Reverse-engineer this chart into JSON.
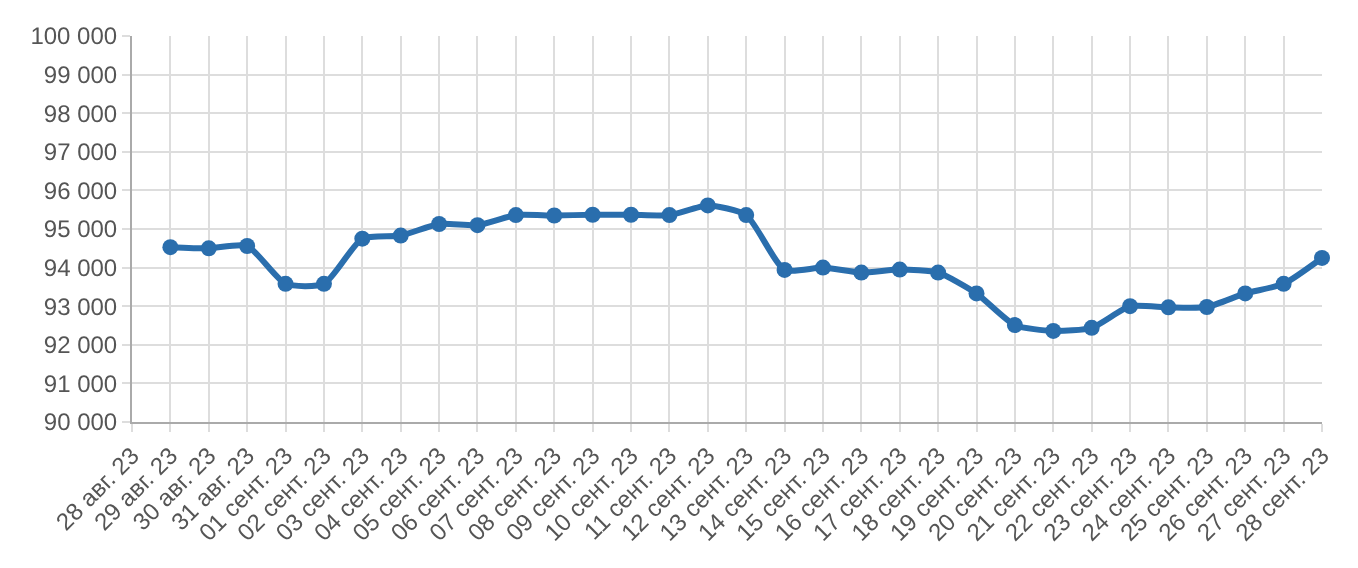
{
  "chart_data": {
    "type": "line",
    "categories": [
      "28 авг. 23",
      "29 авг. 23",
      "30 авг. 23",
      "31 авг. 23",
      "01 сент. 23",
      "02 сент. 23",
      "03 сент. 23",
      "04 сент. 23",
      "05 сент. 23",
      "06 сент. 23",
      "07 сент. 23",
      "08 сент. 23",
      "09 сент. 23",
      "10 сент. 23",
      "11 сент. 23",
      "12 сент. 23",
      "13 сент. 23",
      "14 сент. 23",
      "15 сент. 23",
      "16 сент. 23",
      "17 сент. 23",
      "18 сент. 23",
      "19 сент. 23",
      "20 сент. 23",
      "21 сент. 23",
      "22 сент. 23",
      "23 сент. 23",
      "24 сент. 23",
      "25 сент. 23",
      "26 сент. 23",
      "27 сент. 23",
      "28 сент. 23"
    ],
    "series": [
      {
        "color": "#2a6ead",
        "values": [
          null,
          94530,
          94500,
          94560,
          93580,
          93580,
          94750,
          94830,
          95130,
          95100,
          95360,
          95350,
          95370,
          95370,
          95360,
          95610,
          95360,
          93940,
          94000,
          93870,
          93950,
          93870,
          93330,
          92510,
          92360,
          92440,
          93000,
          92970,
          92980,
          93330,
          93580,
          94250
        ]
      }
    ],
    "ylim": [
      90000,
      100000
    ],
    "yticks": [
      {
        "value": 90000,
        "label": "90 000"
      },
      {
        "value": 91000,
        "label": "91 000"
      },
      {
        "value": 92000,
        "label": "92 000"
      },
      {
        "value": 93000,
        "label": "93 000"
      },
      {
        "value": 94000,
        "label": "94 000"
      },
      {
        "value": 95000,
        "label": "95 000"
      },
      {
        "value": 96000,
        "label": "96 000"
      },
      {
        "value": 97000,
        "label": "97 000"
      },
      {
        "value": 98000,
        "label": "98 000"
      },
      {
        "value": 99000,
        "label": "99 000"
      },
      {
        "value": 100000,
        "label": "100 000"
      }
    ],
    "grid": true,
    "marker": "circle",
    "line_style": "solid",
    "legend": false
  }
}
